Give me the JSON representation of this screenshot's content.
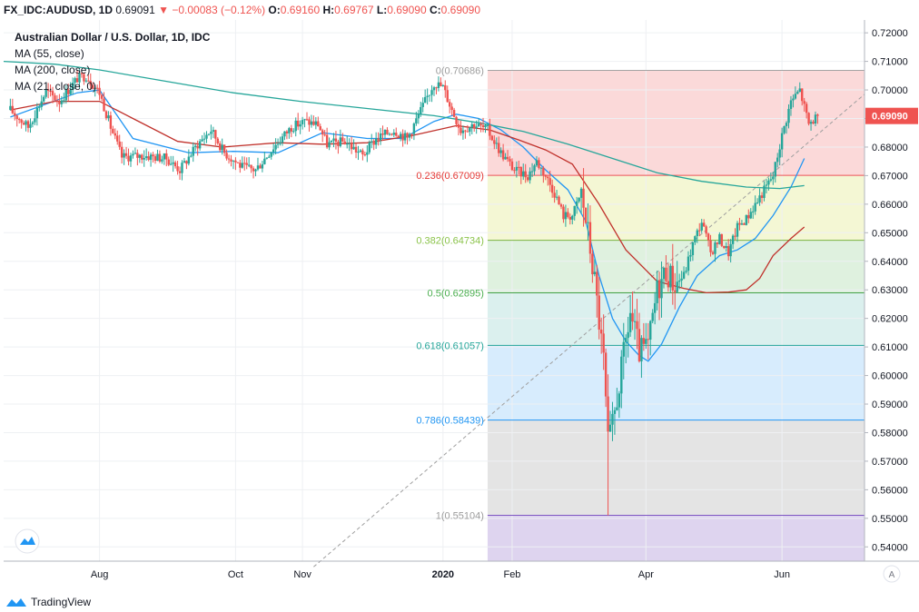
{
  "header": {
    "symbol": "FX_IDC:AUDUSD, 1D",
    "last": "0.69091",
    "change": "−0.00083 (−0.12%)",
    "o_label": "O:",
    "o": "0.69160",
    "h_label": "H:",
    "h": "0.69767",
    "l_label": "L:",
    "l": "0.69090",
    "c_label": "C:",
    "c": "0.69090"
  },
  "legend": {
    "title": "Australian Dollar / U.S. Dollar, 1D, IDC",
    "ma55": "MA (55, close)",
    "ma200": "MA (200, close)",
    "ma21": "MA (21, close, 0)"
  },
  "footer": {
    "brand": "TradingView"
  },
  "scale_button": "A",
  "chart_data": {
    "type": "candlestick",
    "title": "Australian Dollar / U.S. Dollar, 1D, IDC",
    "ylim": [
      0.535,
      0.7245
    ],
    "y_ticks": [
      "0.72000",
      "0.71000",
      "0.70000",
      "0.69000",
      "0.68000",
      "0.67000",
      "0.66000",
      "0.65000",
      "0.64000",
      "0.63000",
      "0.62000",
      "0.61000",
      "0.60000",
      "0.59000",
      "0.58000",
      "0.57000",
      "0.56000",
      "0.55000",
      "0.54000"
    ],
    "x_ticks": [
      {
        "label": "Aug",
        "day": 40,
        "bold": false
      },
      {
        "label": "Oct",
        "day": 101,
        "bold": false
      },
      {
        "label": "Nov",
        "day": 131,
        "bold": false
      },
      {
        "label": "2020",
        "day": 194,
        "bold": true
      },
      {
        "label": "Feb",
        "day": 225,
        "bold": false
      },
      {
        "label": "Apr",
        "day": 285,
        "bold": false
      },
      {
        "label": "Jun",
        "day": 346,
        "bold": false
      }
    ],
    "x_range": [
      -3,
      383
    ],
    "current_price": "0.69090",
    "price_colors": {
      "up": "#26a69a",
      "down": "#ef5350"
    },
    "ohlc_anchors": [
      [
        0,
        0.693
      ],
      [
        8,
        0.687
      ],
      [
        16,
        0.6995
      ],
      [
        22,
        0.696
      ],
      [
        30,
        0.704
      ],
      [
        34,
        0.705
      ],
      [
        40,
        0.699
      ],
      [
        45,
        0.687
      ],
      [
        50,
        0.6765
      ],
      [
        60,
        0.677
      ],
      [
        70,
        0.676
      ],
      [
        76,
        0.672
      ],
      [
        84,
        0.681
      ],
      [
        90,
        0.686
      ],
      [
        96,
        0.678
      ],
      [
        104,
        0.673
      ],
      [
        110,
        0.672
      ],
      [
        118,
        0.68
      ],
      [
        126,
        0.687
      ],
      [
        132,
        0.689
      ],
      [
        138,
        0.688
      ],
      [
        142,
        0.681
      ],
      [
        150,
        0.682
      ],
      [
        158,
        0.677
      ],
      [
        164,
        0.683
      ],
      [
        172,
        0.686
      ],
      [
        178,
        0.683
      ],
      [
        186,
        0.696
      ],
      [
        190,
        0.7025
      ],
      [
        194,
        0.701
      ],
      [
        198,
        0.693
      ],
      [
        202,
        0.686
      ],
      [
        208,
        0.688
      ],
      [
        214,
        0.686
      ],
      [
        220,
        0.678
      ],
      [
        226,
        0.672
      ],
      [
        232,
        0.67
      ],
      [
        236,
        0.675
      ],
      [
        240,
        0.67
      ],
      [
        244,
        0.664
      ],
      [
        248,
        0.656
      ],
      [
        252,
        0.656
      ],
      [
        256,
        0.664
      ],
      [
        259,
        0.65
      ],
      [
        262,
        0.633
      ],
      [
        266,
        0.605
      ],
      [
        268,
        0.576
      ],
      [
        270,
        0.582
      ],
      [
        274,
        0.602
      ],
      [
        278,
        0.622
      ],
      [
        282,
        0.608
      ],
      [
        286,
        0.61
      ],
      [
        290,
        0.63
      ],
      [
        294,
        0.637
      ],
      [
        298,
        0.632
      ],
      [
        302,
        0.635
      ],
      [
        306,
        0.646
      ],
      [
        310,
        0.654
      ],
      [
        314,
        0.643
      ],
      [
        318,
        0.648
      ],
      [
        322,
        0.643
      ],
      [
        326,
        0.652
      ],
      [
        330,
        0.655
      ],
      [
        334,
        0.66
      ],
      [
        338,
        0.665
      ],
      [
        342,
        0.67
      ],
      [
        346,
        0.684
      ],
      [
        350,
        0.696
      ],
      [
        354,
        0.7
      ],
      [
        358,
        0.688
      ],
      [
        362,
        0.691
      ]
    ],
    "series": [
      {
        "name": "MA (21, close, 0)",
        "color": "#2196f3",
        "points": [
          [
            0,
            0.6905
          ],
          [
            30,
            0.699
          ],
          [
            40,
            0.7
          ],
          [
            55,
            0.683
          ],
          [
            80,
            0.678
          ],
          [
            100,
            0.6785
          ],
          [
            120,
            0.678
          ],
          [
            140,
            0.685
          ],
          [
            160,
            0.683
          ],
          [
            176,
            0.683
          ],
          [
            190,
            0.689
          ],
          [
            200,
            0.6915
          ],
          [
            210,
            0.69
          ],
          [
            220,
            0.686
          ],
          [
            230,
            0.68
          ],
          [
            240,
            0.672
          ],
          [
            250,
            0.665
          ],
          [
            258,
            0.654
          ],
          [
            264,
            0.635
          ],
          [
            270,
            0.62
          ],
          [
            276,
            0.612
          ],
          [
            282,
            0.607
          ],
          [
            286,
            0.605
          ],
          [
            292,
            0.611
          ],
          [
            300,
            0.624
          ],
          [
            308,
            0.635
          ],
          [
            318,
            0.642
          ],
          [
            326,
            0.644
          ],
          [
            334,
            0.648
          ],
          [
            342,
            0.656
          ],
          [
            350,
            0.666
          ],
          [
            356,
            0.676
          ]
        ]
      },
      {
        "name": "MA (55, close)",
        "color": "#c0312b",
        "points": [
          [
            0,
            0.693
          ],
          [
            20,
            0.696
          ],
          [
            40,
            0.696
          ],
          [
            55,
            0.69
          ],
          [
            75,
            0.682
          ],
          [
            95,
            0.68
          ],
          [
            120,
            0.6815
          ],
          [
            140,
            0.681
          ],
          [
            160,
            0.6815
          ],
          [
            180,
            0.684
          ],
          [
            200,
            0.6875
          ],
          [
            215,
            0.686
          ],
          [
            228,
            0.6825
          ],
          [
            240,
            0.679
          ],
          [
            252,
            0.674
          ],
          [
            264,
            0.66
          ],
          [
            276,
            0.644
          ],
          [
            290,
            0.633
          ],
          [
            302,
            0.6305
          ],
          [
            312,
            0.629
          ],
          [
            322,
            0.6292
          ],
          [
            330,
            0.63
          ],
          [
            336,
            0.634
          ],
          [
            342,
            0.642
          ],
          [
            350,
            0.648
          ],
          [
            356,
            0.652
          ]
        ]
      },
      {
        "name": "MA (200, close)",
        "color": "#26a69a",
        "points": [
          [
            -3,
            0.71
          ],
          [
            20,
            0.709
          ],
          [
            40,
            0.707
          ],
          [
            70,
            0.703
          ],
          [
            100,
            0.699
          ],
          [
            130,
            0.696
          ],
          [
            160,
            0.6935
          ],
          [
            190,
            0.691
          ],
          [
            210,
            0.6885
          ],
          [
            230,
            0.6855
          ],
          [
            250,
            0.681
          ],
          [
            270,
            0.676
          ],
          [
            290,
            0.671
          ],
          [
            310,
            0.668
          ],
          [
            330,
            0.666
          ],
          [
            345,
            0.6655
          ],
          [
            356,
            0.6665
          ]
        ]
      }
    ],
    "fibonacci": {
      "levels": [
        {
          "ratio": "0",
          "price": 0.70686,
          "label": "0(0.70686)",
          "line": "#a3a3a3",
          "fill": "rgba(239,83,80,0.22)",
          "text": "#9c9c9c"
        },
        {
          "ratio": "0.236",
          "price": 0.67009,
          "label": "0.236(0.67009)",
          "line": "#ef5350",
          "fill": "rgba(205,220,57,0.22)",
          "text": "#e53935"
        },
        {
          "ratio": "0.382",
          "price": 0.64734,
          "label": "0.382(0.64734)",
          "line": "#7cb342",
          "fill": "rgba(76,175,80,0.18)",
          "text": "#8bc34a"
        },
        {
          "ratio": "0.5",
          "price": 0.62895,
          "label": "0.5(0.62895)",
          "line": "#43a047",
          "fill": "rgba(0,150,136,0.14)",
          "text": "#4caf50"
        },
        {
          "ratio": "0.618",
          "price": 0.61057,
          "label": "0.618(0.61057)",
          "line": "#26a69a",
          "fill": "rgba(33,150,243,0.18)",
          "text": "#26a69a"
        },
        {
          "ratio": "0.786",
          "price": 0.58439,
          "label": "0.786(0.58439)",
          "line": "#2196f3",
          "fill": "rgba(120,120,120,0.20)",
          "text": "#2196f3"
        },
        {
          "ratio": "1",
          "price": 0.55104,
          "label": "1(0.55104)",
          "line": "#7e57c2",
          "fill": "rgba(103,58,183,0.22)",
          "text": "#9c9c9c"
        }
      ],
      "start_day": 214,
      "trend_start": [
        136,
        0.533
      ],
      "trend_end": [
        383,
        0.6985
      ]
    }
  }
}
